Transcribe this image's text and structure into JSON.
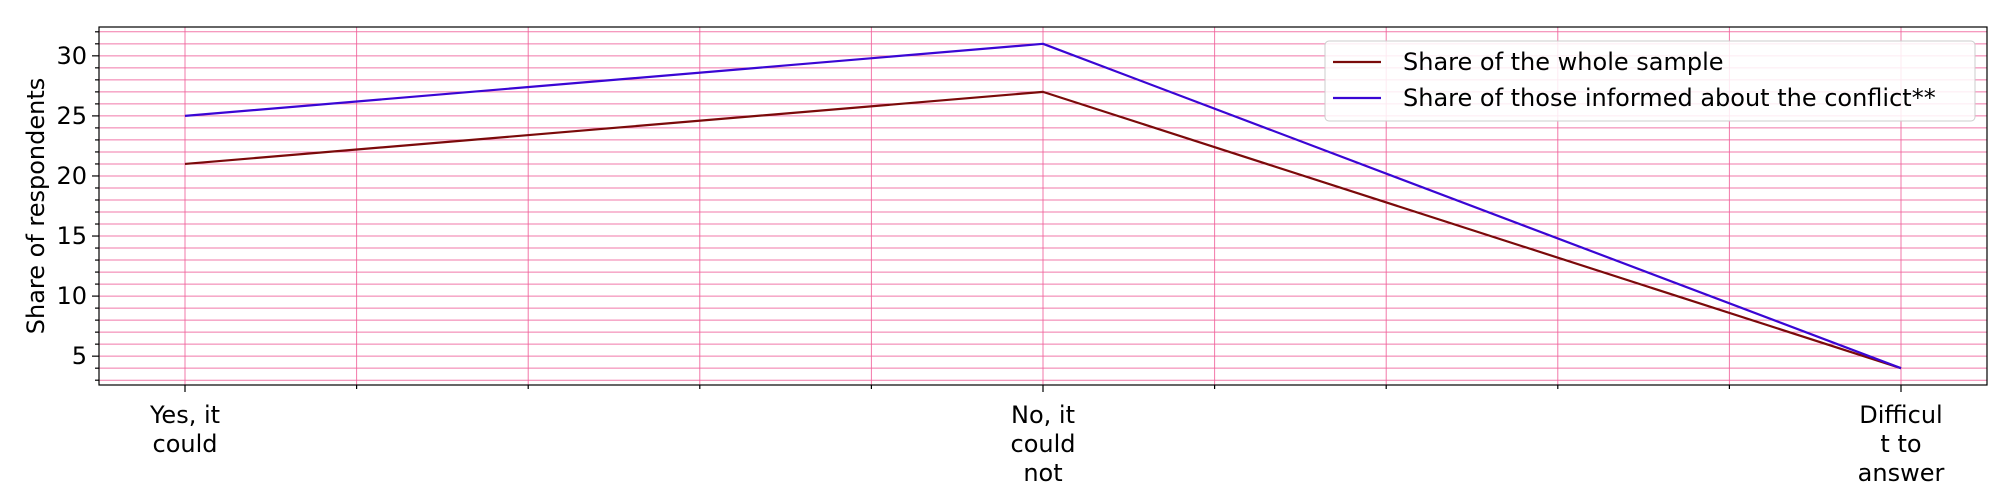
{
  "chart_data": {
    "type": "line",
    "categories": [
      "Yes, it could",
      "No, it could not",
      "Difficult to answer"
    ],
    "category_tick_lines": [
      [
        "Yes, it",
        "could"
      ],
      [
        "No, it",
        "could",
        "not"
      ],
      [
        "Difficul",
        "t to",
        "answer"
      ]
    ],
    "series": [
      {
        "name": "Share of the whole sample",
        "values": [
          21,
          27,
          4
        ],
        "color": "#7b0a0a"
      },
      {
        "name": "Share of those informed about the conflict**",
        "values": [
          25,
          31,
          4
        ],
        "color": "#3a06d4"
      }
    ],
    "ylabel": "Share of respondents",
    "xlabel": "",
    "ylim": [
      2.6,
      32.4
    ],
    "yticks": [
      5,
      10,
      15,
      20,
      25,
      30
    ],
    "y_minor_step": 1,
    "x_minor_divisions": 5,
    "grid": true,
    "grid_color": "#f0609a",
    "legend_position": "upper-right"
  }
}
